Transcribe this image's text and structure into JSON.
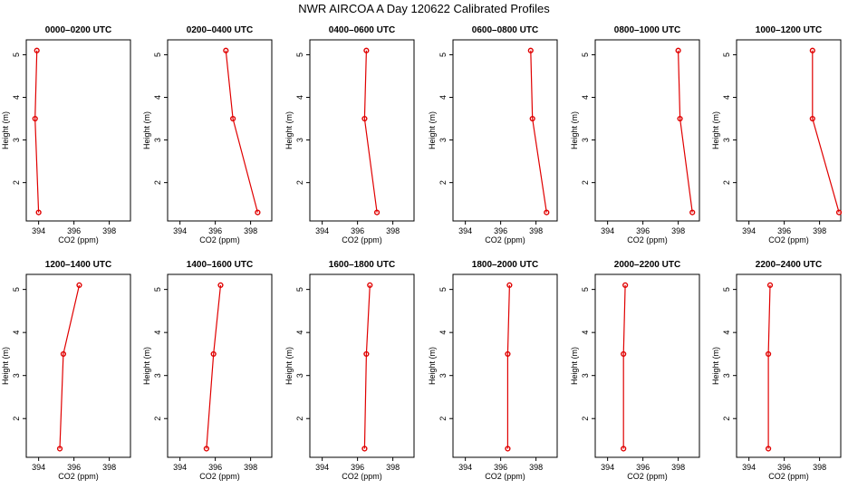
{
  "chart_data": {
    "type": "line",
    "title": "NWR AIRCOA A  Day 120622  Calibrated Profiles",
    "xlabel": "CO2 (ppm)",
    "ylabel": "Height (m)",
    "xlim": [
      393.3,
      399.2
    ],
    "ylim": [
      1.1,
      5.35
    ],
    "xticks": [
      394,
      396,
      398
    ],
    "yticks": [
      2,
      3,
      4,
      5
    ],
    "heights": [
      1.3,
      3.5,
      5.1
    ],
    "panels": [
      {
        "title": "0000–0200 UTC",
        "co2": [
          394.0,
          393.8,
          393.9
        ]
      },
      {
        "title": "0200–0400 UTC",
        "co2": [
          398.4,
          397.0,
          396.6
        ]
      },
      {
        "title": "0400–0600 UTC",
        "co2": [
          397.1,
          396.4,
          396.5
        ]
      },
      {
        "title": "0600–0800 UTC",
        "co2": [
          398.6,
          397.8,
          397.7
        ]
      },
      {
        "title": "0800–1000 UTC",
        "co2": [
          398.8,
          398.1,
          398.0
        ]
      },
      {
        "title": "1000–1200 UTC",
        "co2": [
          399.1,
          397.6,
          397.6
        ]
      },
      {
        "title": "1200–1400 UTC",
        "co2": [
          395.2,
          395.4,
          396.3
        ]
      },
      {
        "title": "1400–1600 UTC",
        "co2": [
          395.5,
          395.9,
          396.3
        ]
      },
      {
        "title": "1600–1800 UTC",
        "co2": [
          396.4,
          396.5,
          396.7
        ]
      },
      {
        "title": "1800–2000 UTC",
        "co2": [
          396.4,
          396.4,
          396.5
        ]
      },
      {
        "title": "2000–2200 UTC",
        "co2": [
          394.9,
          394.9,
          395.0
        ]
      },
      {
        "title": "2200–2400 UTC",
        "co2": [
          395.1,
          395.1,
          395.2
        ]
      }
    ]
  }
}
